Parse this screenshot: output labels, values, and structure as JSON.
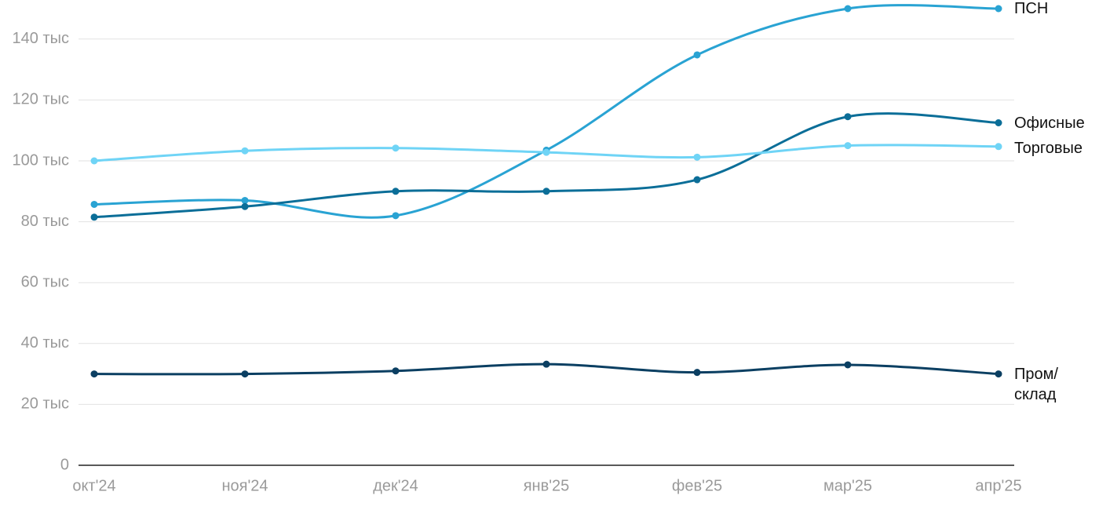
{
  "chart_data": {
    "type": "line",
    "categories": [
      "окт'24",
      "ноя'24",
      "дек'24",
      "янв'25",
      "фев'25",
      "мар'25",
      "апр'25"
    ],
    "series": [
      {
        "name": "ПСН",
        "color": "#29a3d3",
        "values": [
          85700,
          87000,
          82000,
          103500,
          134800,
          150000,
          150000
        ]
      },
      {
        "name": "Офисные",
        "color": "#0b6e98",
        "values": [
          81500,
          85000,
          90000,
          90000,
          93800,
          114500,
          112500
        ]
      },
      {
        "name": "Торговые",
        "color": "#6fd4f6",
        "values": [
          100000,
          103300,
          104200,
          102800,
          101200,
          105000,
          104700
        ]
      },
      {
        "name": "Пром/\nсклад",
        "color": "#0b3f62",
        "values": [
          30000,
          30000,
          31000,
          33200,
          30500,
          33000,
          30000
        ]
      }
    ],
    "ylim": [
      0,
      150000
    ],
    "yticks": [
      0,
      {
        "value": 20000,
        "label": "20 тыс"
      },
      {
        "value": 40000,
        "label": "40 тыс"
      },
      {
        "value": 60000,
        "label": "60 тыс"
      },
      {
        "value": 80000,
        "label": "80 тыс"
      },
      {
        "value": 100000,
        "label": "100 тыс"
      },
      {
        "value": 120000,
        "label": "120 тыс"
      },
      {
        "value": 140000,
        "label": "140 тыс"
      }
    ],
    "grid": true,
    "legend": "right"
  }
}
